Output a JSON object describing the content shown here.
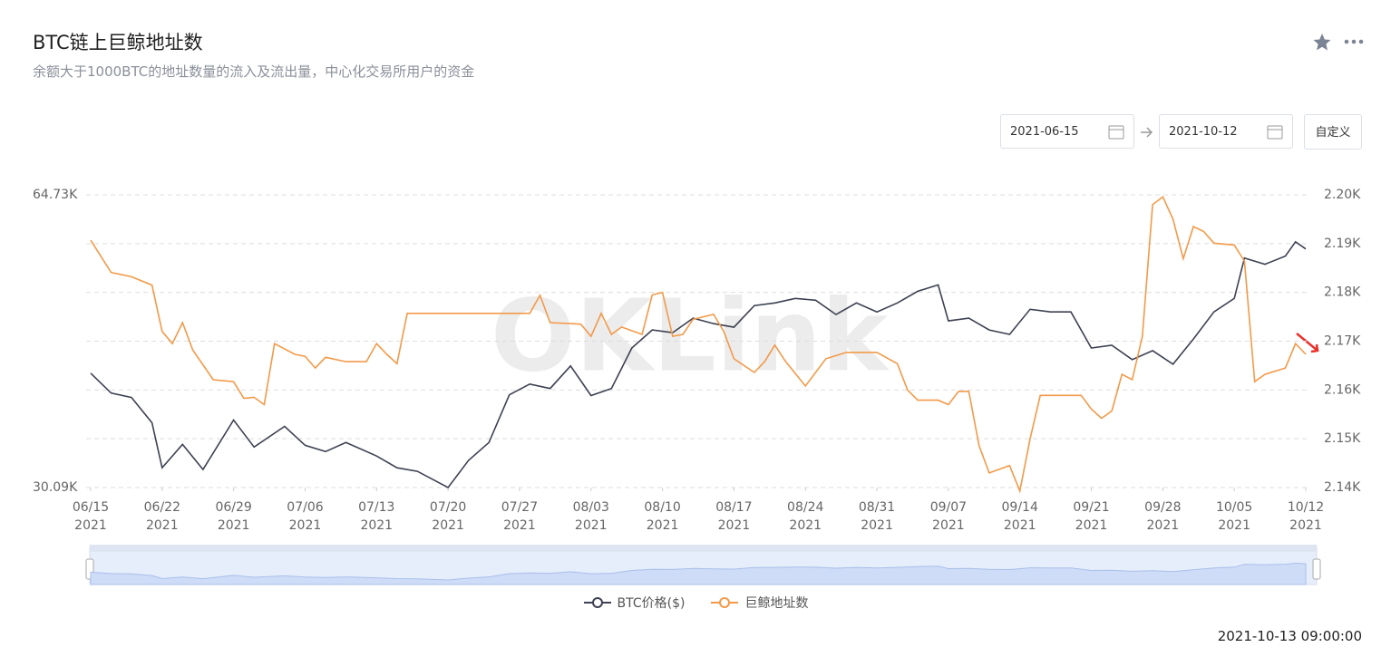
{
  "header": {
    "title": "BTC链上巨鲸地址数",
    "subtitle": "余额大于1000BTC的地址数量的流入及流出量，中心化交易所用户的资金"
  },
  "date_range": {
    "start": "2021-06-15",
    "end": "2021-10-12",
    "button": "自定义"
  },
  "timestamp": "2021-10-13 09:00:00",
  "watermark": "OKLink",
  "chart_data": {
    "type": "line",
    "xlim": [
      "2021-06-15",
      "2021-10-12"
    ],
    "xticks": [
      {
        "value": "2021-06-15",
        "label": "06/15\n2021"
      },
      {
        "value": "2021-06-22",
        "label": "06/22\n2021"
      },
      {
        "value": "2021-06-29",
        "label": "06/29\n2021"
      },
      {
        "value": "2021-07-06",
        "label": "07/06\n2021"
      },
      {
        "value": "2021-07-13",
        "label": "07/13\n2021"
      },
      {
        "value": "2021-07-20",
        "label": "07/20\n2021"
      },
      {
        "value": "2021-07-27",
        "label": "07/27\n2021"
      },
      {
        "value": "2021-08-03",
        "label": "08/03\n2021"
      },
      {
        "value": "2021-08-10",
        "label": "08/10\n2021"
      },
      {
        "value": "2021-08-17",
        "label": "08/17\n2021"
      },
      {
        "value": "2021-08-24",
        "label": "08/24\n2021"
      },
      {
        "value": "2021-08-31",
        "label": "08/31\n2021"
      },
      {
        "value": "2021-09-07",
        "label": "09/07\n2021"
      },
      {
        "value": "2021-09-14",
        "label": "09/14\n2021"
      },
      {
        "value": "2021-09-21",
        "label": "09/21\n2021"
      },
      {
        "value": "2021-09-28",
        "label": "09/28\n2021"
      },
      {
        "value": "2021-10-05",
        "label": "10/05\n2021"
      },
      {
        "value": "2021-10-12",
        "label": "10/12\n2021"
      }
    ],
    "ylim": [
      30090,
      64730
    ],
    "yticks": [
      {
        "value": 64730,
        "label": "64.73K"
      },
      {
        "value": 30090,
        "label": "30.09K"
      }
    ],
    "y2lim": [
      2140,
      2200
    ],
    "y2ticks": [
      {
        "value": 2200,
        "label": "2.20K"
      },
      {
        "value": 2190,
        "label": "2.19K"
      },
      {
        "value": 2180,
        "label": "2.18K"
      },
      {
        "value": 2170,
        "label": "2.17K"
      },
      {
        "value": 2160,
        "label": "2.16K"
      },
      {
        "value": 2150,
        "label": "2.15K"
      },
      {
        "value": 2140,
        "label": "2.14K"
      }
    ],
    "grid": true,
    "legend": "bottom",
    "series": [
      {
        "name": "BTC价格($)",
        "color": "#3d4151",
        "axis": "y",
        "x": [
          "2021-06-15",
          "2021-06-17",
          "2021-06-19",
          "2021-06-21",
          "2021-06-22",
          "2021-06-24",
          "2021-06-26",
          "2021-06-29",
          "2021-07-01",
          "2021-07-04",
          "2021-07-06",
          "2021-07-08",
          "2021-07-10",
          "2021-07-13",
          "2021-07-15",
          "2021-07-17",
          "2021-07-20",
          "2021-07-22",
          "2021-07-24",
          "2021-07-26",
          "2021-07-28",
          "2021-07-30",
          "2021-08-01",
          "2021-08-03",
          "2021-08-05",
          "2021-08-07",
          "2021-08-09",
          "2021-08-11",
          "2021-08-13",
          "2021-08-15",
          "2021-08-17",
          "2021-08-19",
          "2021-08-21",
          "2021-08-23",
          "2021-08-25",
          "2021-08-27",
          "2021-08-29",
          "2021-08-31",
          "2021-09-02",
          "2021-09-04",
          "2021-09-06",
          "2021-09-07",
          "2021-09-09",
          "2021-09-11",
          "2021-09-13",
          "2021-09-15",
          "2021-09-17",
          "2021-09-19",
          "2021-09-21",
          "2021-09-23",
          "2021-09-25",
          "2021-09-27",
          "2021-09-29",
          "2021-10-01",
          "2021-10-03",
          "2021-10-05",
          "2021-10-06",
          "2021-10-08",
          "2021-10-10",
          "2021-10-11",
          "2021-10-12"
        ],
        "values": [
          43620,
          41280,
          40750,
          37760,
          32430,
          35200,
          32220,
          38080,
          34880,
          37330,
          35090,
          34350,
          35420,
          33820,
          32430,
          32010,
          30090,
          33290,
          35420,
          41060,
          42340,
          41810,
          44480,
          40970,
          41810,
          46610,
          48740,
          48420,
          50130,
          49490,
          49060,
          51620,
          51940,
          52470,
          52260,
          50560,
          51940,
          50870,
          51940,
          53320,
          54070,
          49810,
          50130,
          48740,
          48210,
          51190,
          50870,
          50870,
          46610,
          46930,
          45230,
          46290,
          44690,
          47670,
          50870,
          52470,
          57260,
          56520,
          57480,
          59180,
          58330
        ]
      },
      {
        "name": "巨鲸地址数",
        "color": "#f29a4a",
        "axis": "y2",
        "x": [
          "2021-06-15",
          "2021-06-17",
          "2021-06-19",
          "2021-06-21",
          "2021-06-22",
          "2021-06-23",
          "2021-06-24",
          "2021-06-25",
          "2021-06-27",
          "2021-06-29",
          "2021-06-30",
          "2021-07-01",
          "2021-07-02",
          "2021-07-03",
          "2021-07-05",
          "2021-07-06",
          "2021-07-07",
          "2021-07-08",
          "2021-07-10",
          "2021-07-12",
          "2021-07-13",
          "2021-07-14",
          "2021-07-15",
          "2021-07-16",
          "2021-07-28",
          "2021-07-29",
          "2021-07-30",
          "2021-08-02",
          "2021-08-03",
          "2021-08-04",
          "2021-08-05",
          "2021-08-06",
          "2021-08-08",
          "2021-08-09",
          "2021-08-10",
          "2021-08-11",
          "2021-08-12",
          "2021-08-13",
          "2021-08-15",
          "2021-08-16",
          "2021-08-17",
          "2021-08-19",
          "2021-08-20",
          "2021-08-21",
          "2021-08-22",
          "2021-08-24",
          "2021-08-26",
          "2021-08-28",
          "2021-08-31",
          "2021-09-02",
          "2021-09-03",
          "2021-09-04",
          "2021-09-06",
          "2021-09-07",
          "2021-09-08",
          "2021-09-09",
          "2021-09-10",
          "2021-09-11",
          "2021-09-13",
          "2021-09-14",
          "2021-09-15",
          "2021-09-16",
          "2021-09-20",
          "2021-09-21",
          "2021-09-22",
          "2021-09-23",
          "2021-09-24",
          "2021-09-25",
          "2021-09-26",
          "2021-09-27",
          "2021-09-28",
          "2021-09-29",
          "2021-09-30",
          "2021-10-01",
          "2021-10-02",
          "2021-10-03",
          "2021-10-05",
          "2021-10-06",
          "2021-10-07",
          "2021-10-08",
          "2021-10-10",
          "2021-10-11",
          "2021-10-12"
        ],
        "values": [
          2190.7,
          2184.1,
          2183.2,
          2181.5,
          2172.0,
          2169.5,
          2173.8,
          2168.2,
          2162.1,
          2161.7,
          2158.3,
          2158.5,
          2157.0,
          2169.5,
          2167.3,
          2166.9,
          2164.5,
          2166.7,
          2165.8,
          2165.8,
          2169.5,
          2167.3,
          2165.4,
          2175.7,
          2175.7,
          2179.4,
          2173.8,
          2173.5,
          2171.0,
          2175.7,
          2171.4,
          2172.9,
          2171.4,
          2179.5,
          2180.0,
          2171.0,
          2171.4,
          2174.5,
          2175.5,
          2172.0,
          2166.4,
          2163.6,
          2165.8,
          2169.2,
          2166.0,
          2160.8,
          2166.4,
          2167.7,
          2167.7,
          2165.4,
          2160.0,
          2157.9,
          2157.9,
          2157.0,
          2159.7,
          2159.7,
          2148.6,
          2143.0,
          2144.5,
          2139.3,
          2150.0,
          2158.9,
          2158.9,
          2156.1,
          2154.2,
          2155.7,
          2163.2,
          2162.1,
          2171.0,
          2198.0,
          2199.6,
          2195.0,
          2186.9,
          2193.5,
          2192.5,
          2190.1,
          2189.7,
          2186.4,
          2161.7,
          2163.2,
          2164.5,
          2169.5,
          2167.3
        ]
      }
    ]
  }
}
